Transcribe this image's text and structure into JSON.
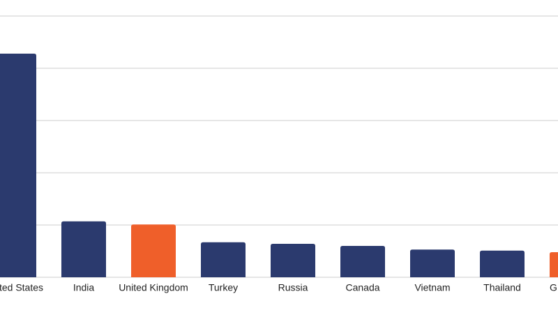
{
  "chart_data": {
    "type": "bar",
    "categories": [
      "United States",
      "India",
      "United Kingdom",
      "Turkey",
      "Russia",
      "Canada",
      "Vietnam",
      "Thailand",
      "G"
    ],
    "values": [
      4.28,
      1.07,
      1.01,
      0.67,
      0.64,
      0.6,
      0.53,
      0.51,
      0.48
    ],
    "colors": [
      "#2b3a6e",
      "#2b3a6e",
      "#ef5f2a",
      "#2b3a6e",
      "#2b3a6e",
      "#2b3a6e",
      "#2b3a6e",
      "#2b3a6e",
      "#ef5f2a"
    ],
    "ylim": [
      0,
      5
    ],
    "yticks": [
      0,
      1,
      2,
      3,
      4,
      5
    ],
    "grid": true
  }
}
